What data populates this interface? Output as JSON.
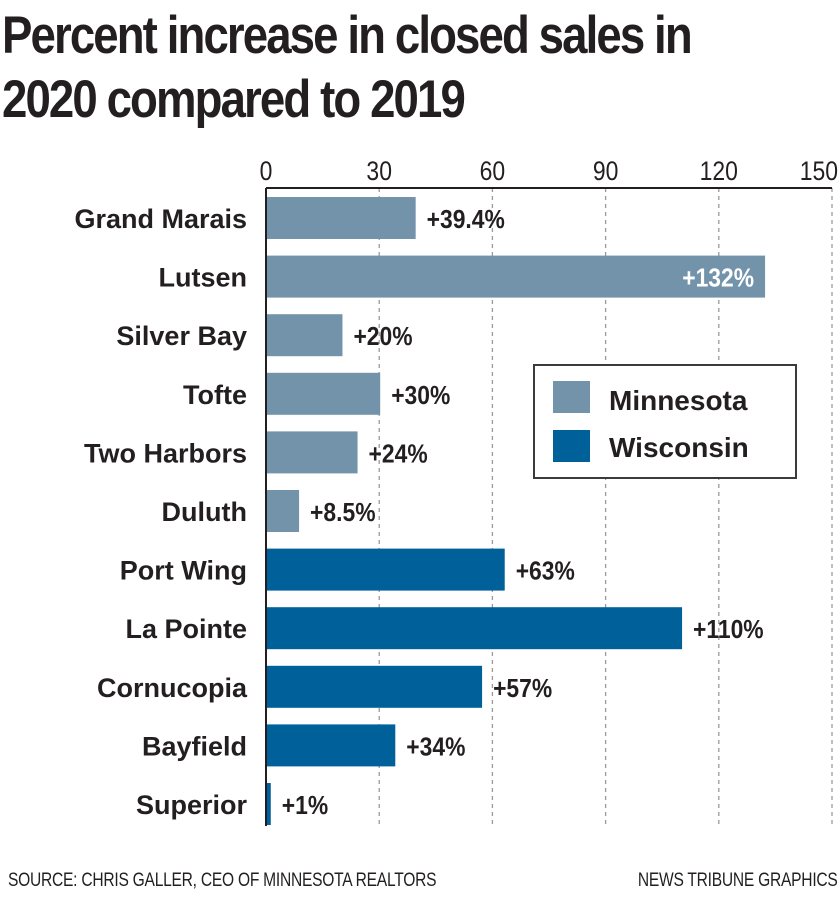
{
  "chart_data": {
    "type": "bar",
    "orientation": "horizontal",
    "title": "Percent increase in closed sales in 2020 compared to 2019",
    "title_lines": [
      "Percent increase in closed sales in",
      "2020 compared to 2019"
    ],
    "xlabel": "",
    "ylabel": "",
    "xlim": [
      0,
      150
    ],
    "xticks": [
      0,
      30,
      60,
      90,
      120,
      150
    ],
    "grid": "vertical-dashed",
    "categories": [
      "Grand Marais",
      "Lutsen",
      "Silver Bay",
      "Tofte",
      "Two Harbors",
      "Duluth",
      "Port Wing",
      "La Pointe",
      "Cornucopia",
      "Bayfield",
      "Superior"
    ],
    "values": [
      39.4,
      132,
      20,
      30,
      24,
      8.5,
      63,
      110,
      57,
      34,
      1
    ],
    "data_labels": [
      "+39.4%",
      "+132%",
      "+20%",
      "+30%",
      "+24%",
      "+8.5%",
      "+63%",
      "+110%",
      "+57%",
      "+34%",
      "+1%"
    ],
    "groups": [
      "Minnesota",
      "Minnesota",
      "Minnesota",
      "Minnesota",
      "Minnesota",
      "Minnesota",
      "Wisconsin",
      "Wisconsin",
      "Wisconsin",
      "Wisconsin",
      "Wisconsin"
    ],
    "series": [
      {
        "name": "Minnesota",
        "color": "#7393ab"
      },
      {
        "name": "Wisconsin",
        "color": "#00609a"
      }
    ],
    "legend": {
      "position": "right-middle",
      "entries": [
        "Minnesota",
        "Wisconsin"
      ]
    }
  },
  "footer": {
    "source": "SOURCE: CHRIS GALLER, CEO OF MINNESOTA REALTORS",
    "credit": "NEWS TRIBUNE GRAPHICS"
  }
}
